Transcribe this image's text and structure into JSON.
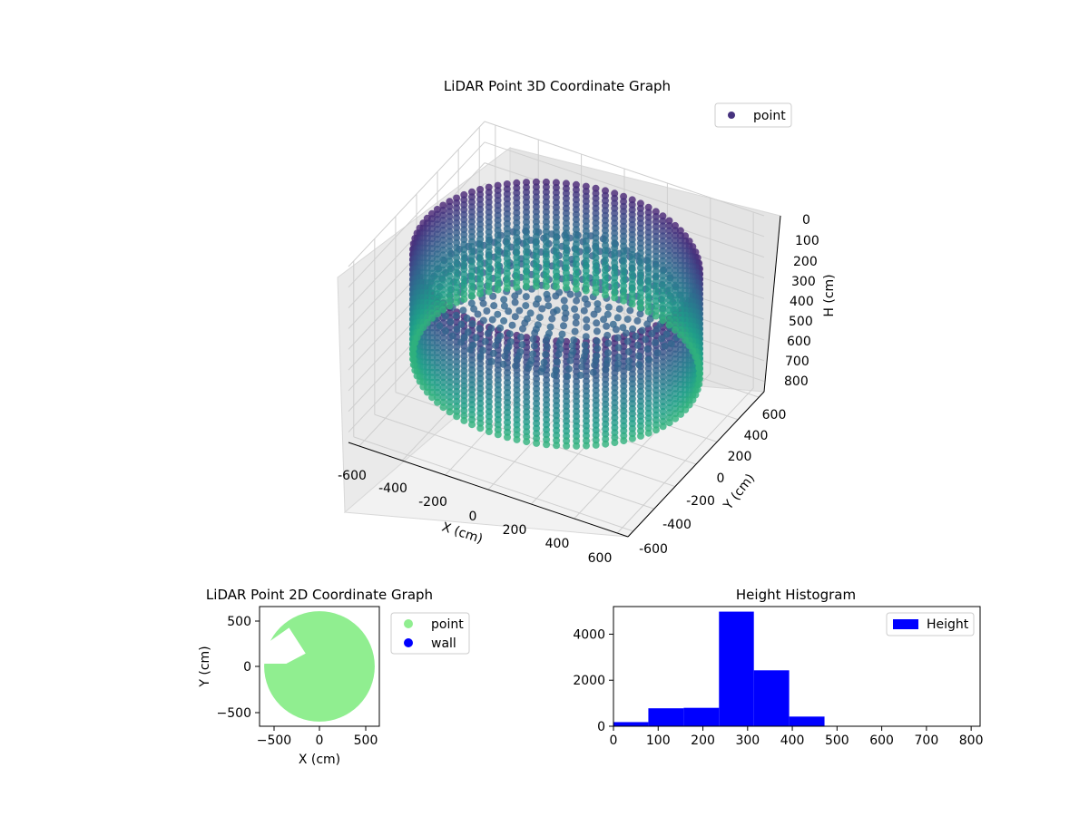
{
  "chart_data": [
    {
      "type": "scatter",
      "projection": "3d",
      "title": "LiDAR Point 3D Coordinate Graph",
      "xlabel": "X (cm)",
      "ylabel": "Y (cm)",
      "zlabel": "H (cm)",
      "xlim": [
        -650,
        650
      ],
      "ylim": [
        -650,
        650
      ],
      "zlim": [
        0,
        850
      ],
      "z_inverted": true,
      "xticks": [
        "-600",
        "-400",
        "-200",
        "0",
        "200",
        "400",
        "600"
      ],
      "yticks": [
        "-600",
        "-400",
        "-200",
        "0",
        "200",
        "400",
        "600"
      ],
      "zticks": [
        "0",
        "100",
        "200",
        "300",
        "400",
        "500",
        "600",
        "700",
        "800"
      ],
      "grid": true,
      "legend": {
        "position": "top-right",
        "entries": [
          "point"
        ]
      },
      "series": [
        {
          "name": "point",
          "colormap": "viridis",
          "shape": "cylindrical-wall",
          "wall_radius": 600,
          "wall_height_range": [
            100,
            620
          ],
          "floor_height": 300
        }
      ],
      "colors": {
        "legend_marker": "#46327e"
      }
    },
    {
      "type": "scatter",
      "title": "LiDAR Point 2D Coordinate Graph",
      "xlabel": "X (cm)",
      "ylabel": "Y (cm)",
      "xlim": [
        -650,
        650
      ],
      "ylim": [
        -650,
        650
      ],
      "xticks": [
        "−500",
        "0",
        "500"
      ],
      "yticks": [
        "−500",
        "0",
        "500"
      ],
      "legend": {
        "position": "outside-right",
        "entries": [
          "point",
          "wall"
        ]
      },
      "series": [
        {
          "name": "point",
          "color": "#90ee90",
          "shape": "filled-disc",
          "radius": 600
        },
        {
          "name": "wall",
          "color": "#0000ff"
        }
      ]
    },
    {
      "type": "bar",
      "subtype": "histogram",
      "title": "Height Histogram",
      "xlabel": "",
      "ylabel": "",
      "xlim": [
        0,
        820
      ],
      "ylim": [
        0,
        5200
      ],
      "xticks": [
        "0",
        "100",
        "200",
        "300",
        "400",
        "500",
        "600",
        "700",
        "800"
      ],
      "yticks": [
        "0",
        "2000",
        "4000"
      ],
      "legend": {
        "position": "top-right",
        "entries": [
          "Height"
        ]
      },
      "bins": [
        {
          "start": 0,
          "end": 78,
          "value": 180
        },
        {
          "start": 78,
          "end": 157,
          "value": 780
        },
        {
          "start": 157,
          "end": 236,
          "value": 800
        },
        {
          "start": 236,
          "end": 314,
          "value": 4980
        },
        {
          "start": 314,
          "end": 393,
          "value": 2430
        },
        {
          "start": 393,
          "end": 472,
          "value": 420
        },
        {
          "start": 472,
          "end": 550,
          "value": 0
        },
        {
          "start": 550,
          "end": 629,
          "value": 0
        },
        {
          "start": 629,
          "end": 707,
          "value": 0
        },
        {
          "start": 707,
          "end": 786,
          "value": 0
        }
      ],
      "series": [
        {
          "name": "Height",
          "color": "#0000ff"
        }
      ]
    }
  ]
}
